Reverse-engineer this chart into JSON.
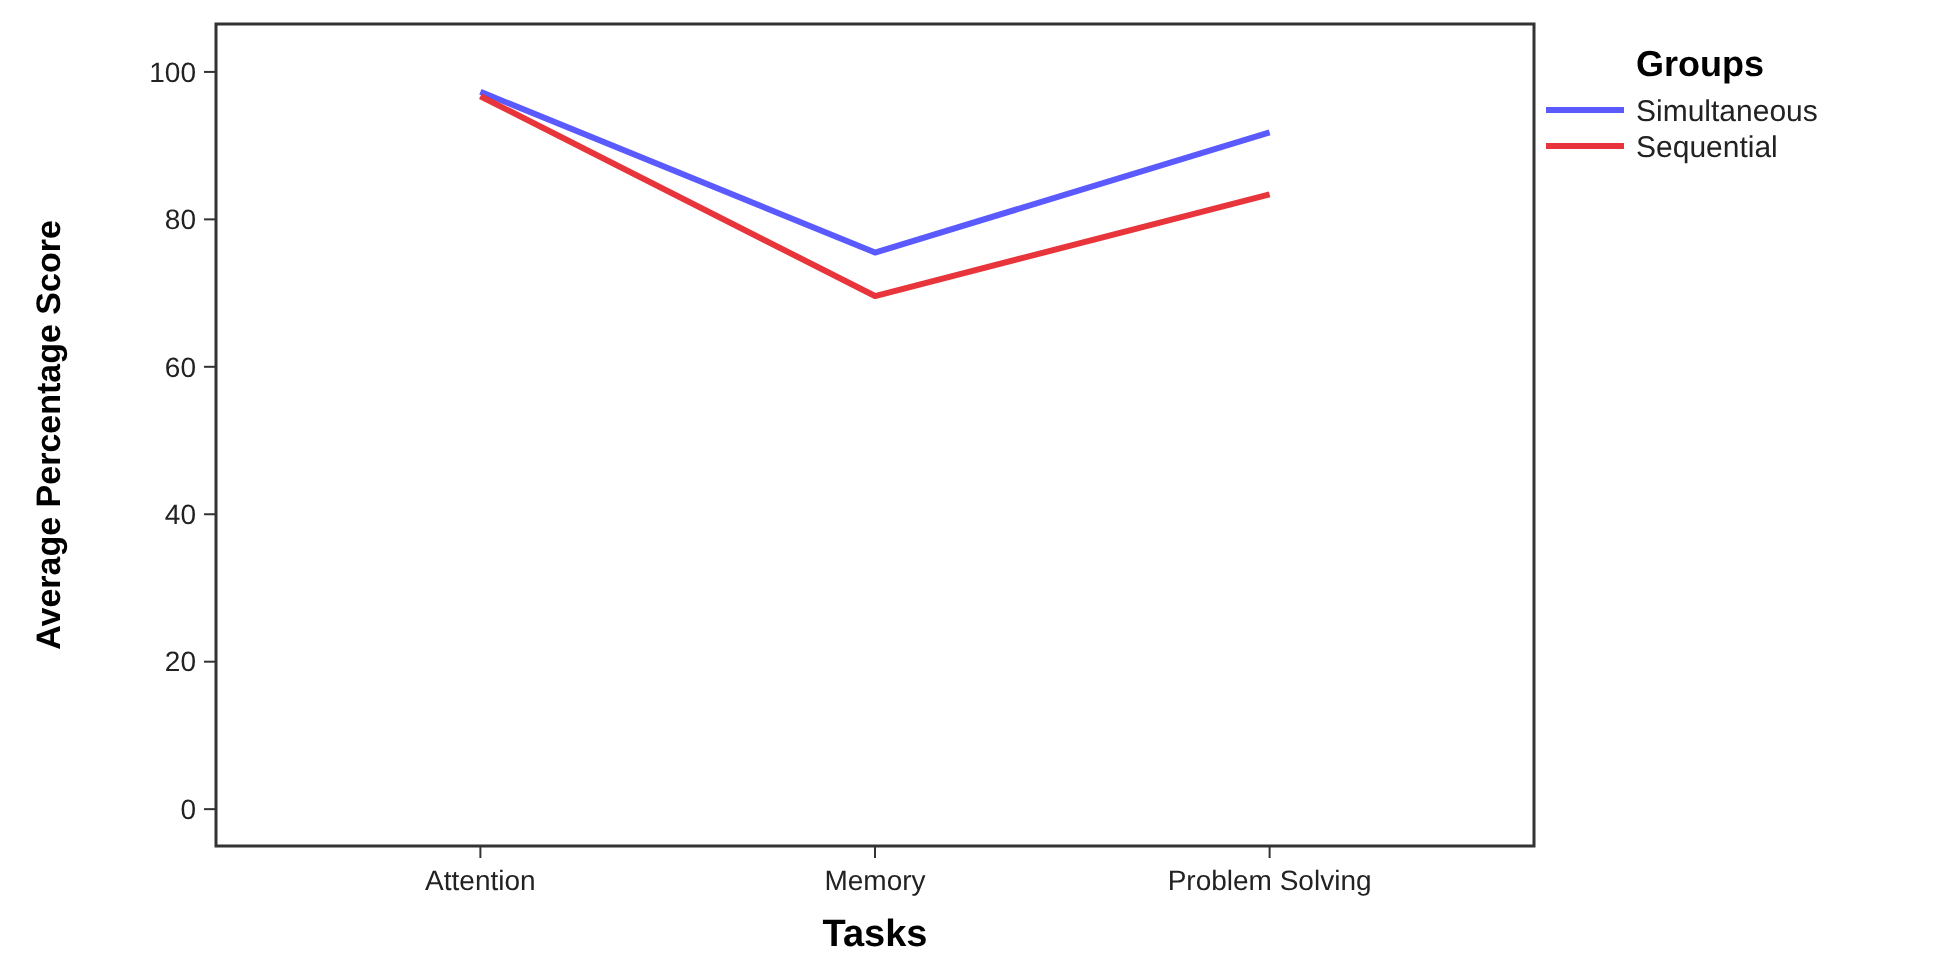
{
  "chart_data": {
    "type": "line",
    "xlabel": "Tasks",
    "ylabel": "Average Percentage Score",
    "legend_title": "Groups",
    "legend": "right",
    "categories": [
      "Attention",
      "Memory",
      "Problem Solving"
    ],
    "ylim": [
      -5,
      106.5
    ],
    "yticks": [
      0,
      20,
      40,
      60,
      80,
      100
    ],
    "grid": false,
    "marker": "none",
    "line_style": "solid",
    "series": [
      {
        "name": "Simultaneous",
        "color": "#5a5aff",
        "values": [
          97.3,
          75.5,
          91.8
        ]
      },
      {
        "name": "Sequential",
        "color": "#e8343b",
        "values": [
          96.7,
          69.6,
          83.4
        ]
      }
    ]
  }
}
